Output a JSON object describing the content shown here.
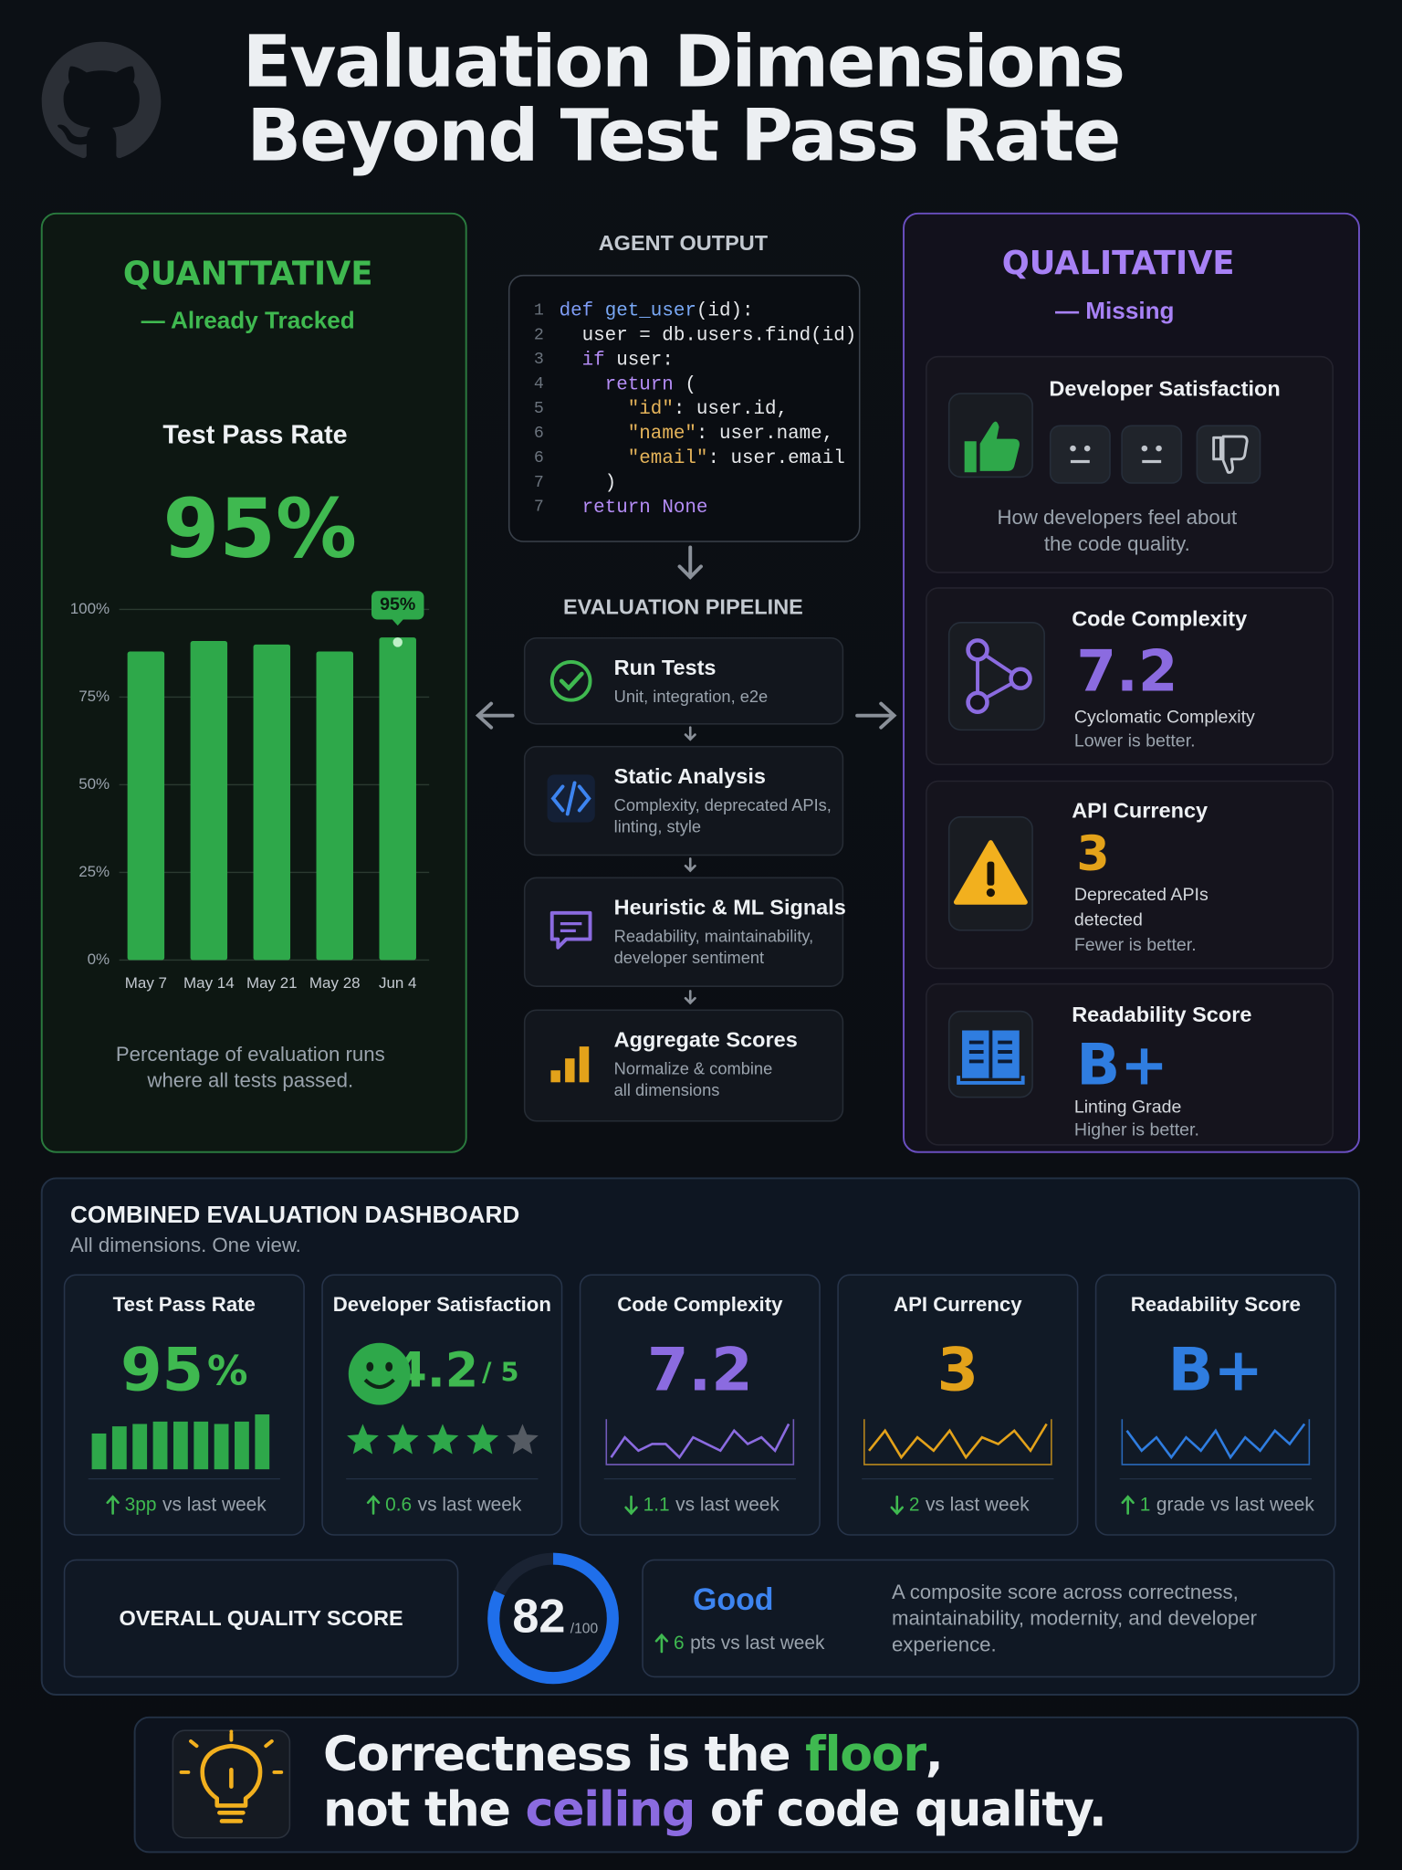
{
  "title": [
    "Evaluation Dimensions",
    "Beyond Test Pass Rate"
  ],
  "quantitative": {
    "heading": "QUANTTATIVE",
    "subheading": "— Already Tracked",
    "metric_label": "Test Pass Rate",
    "metric_value": "95%",
    "caption": [
      "Percentage of evaluation runs",
      "where all tests passed."
    ]
  },
  "chart_data": {
    "type": "bar",
    "categories": [
      "May 7",
      "May 14",
      "May 21",
      "May 28",
      "Jun 4"
    ],
    "values": [
      88,
      91,
      90,
      88,
      92
    ],
    "color": "#2ea84a",
    "ylim": [
      0,
      100
    ],
    "yticks": [
      {
        "value": 0,
        "label": "0%"
      },
      {
        "value": 25,
        "label": "25%"
      },
      {
        "value": 50,
        "label": "50%"
      },
      {
        "value": 75,
        "label": "75%"
      },
      {
        "value": 100,
        "label": "100%"
      }
    ],
    "grid": true,
    "annotation": "95%"
  },
  "agent_output": {
    "label": "AGENT OUTPUT",
    "code": [
      {
        "n": "1",
        "text": "def get_user(id):"
      },
      {
        "n": "2",
        "text": "  user = db.users.find(id)"
      },
      {
        "n": "3",
        "text": "  if user:"
      },
      {
        "n": "4",
        "text": "    return ("
      },
      {
        "n": "5",
        "text": "      \"id\": user.id,"
      },
      {
        "n": "6",
        "text": "      \"name\": user.name,"
      },
      {
        "n": "6",
        "text": "      \"email\": user.email"
      },
      {
        "n": "7",
        "text": "    )"
      },
      {
        "n": "7",
        "text": "  return None"
      }
    ]
  },
  "pipeline": {
    "label": "EVALUATION PIPELINE",
    "steps": [
      {
        "title": "Run Tests",
        "desc": [
          "Unit, integration, e2e"
        ]
      },
      {
        "title": "Static Analysis",
        "desc": [
          "Complexity, deprecated APIs,",
          "linting, style"
        ]
      },
      {
        "title": "Heuristic & ML Signals",
        "desc": [
          "Readability, maintainability,",
          "developer sentiment"
        ]
      },
      {
        "title": "Aggregate Scores",
        "desc": [
          "Normalize & combine",
          "all dimensions"
        ]
      }
    ]
  },
  "qualitative": {
    "heading": "QUALITATIVE",
    "subheading": "— Missing",
    "cards": [
      {
        "title": "Developer Satisfaction",
        "desc": [
          "How developers feel about",
          "the code quality."
        ]
      },
      {
        "title": "Code Complexity",
        "value": "7.2",
        "color": "#8b6be0",
        "desc": [
          "Cyclomatic Complexity",
          "Lower is better."
        ]
      },
      {
        "title": "API Currency",
        "value": "3",
        "color": "#e3a21a",
        "desc": [
          "Deprecated APIs",
          "detected",
          "Fewer is better."
        ]
      },
      {
        "title": "Readability Score",
        "value": "B+",
        "color": "#2f7de0",
        "desc": [
          "Linting Grade",
          "Higher is better."
        ]
      }
    ]
  },
  "dashboard": {
    "title": "COMBINED EVALUATION DASHBOARD",
    "subtitle": "All dimensions. One view.",
    "tiles": [
      {
        "title": "Test Pass Rate",
        "value": "95",
        "unit": "%",
        "color": "#3fb950",
        "bars": [
          30,
          36,
          38,
          40,
          40,
          40,
          38,
          40,
          46
        ],
        "trend": "up",
        "change_value": "3pp",
        "change_text": "vs last week"
      },
      {
        "title": "Developer Satisfaction",
        "value": "4.2",
        "unit": "/ 5",
        "color": "#3fb950",
        "stars": {
          "filled": 4,
          "total": 5
        },
        "trend": "up",
        "change_value": "0.6",
        "change_text": "vs last week"
      },
      {
        "title": "Code Complexity",
        "value": "7.2",
        "color": "#8b6be0",
        "sparkline": [
          3,
          6,
          4,
          5,
          5,
          3,
          6,
          5,
          4,
          7,
          5,
          6,
          4,
          8
        ],
        "trend": "down",
        "change_value": "1.1",
        "change_text": "vs last week"
      },
      {
        "title": "API Currency",
        "value": "3",
        "color": "#e3a21a",
        "sparkline": [
          4,
          7,
          3,
          6,
          4,
          7,
          3,
          6,
          5,
          7,
          4,
          8
        ],
        "trend": "down",
        "change_value": "2",
        "change_text": "vs last week"
      },
      {
        "title": "Readability Score",
        "value": "B+",
        "color": "#2f7de0",
        "sparkline": [
          6,
          3,
          5,
          2,
          5,
          3,
          6,
          2,
          5,
          3,
          6,
          4,
          7
        ],
        "trend": "up",
        "change_value": "1",
        "change_text": "grade vs last week"
      }
    ]
  },
  "overall": {
    "label": "OVERALL QUALITY SCORE",
    "score": 82,
    "max": {
      "value": 100,
      "label": "/100"
    },
    "rating": "Good",
    "trend": "up",
    "change_value": "6",
    "change_text": "pts vs last week",
    "description": [
      "A composite score across correctness,",
      "maintainability, modernity, and developer",
      "experience."
    ]
  },
  "footer": {
    "lines": [
      [
        {
          "text": "Correctness is the "
        },
        {
          "text": "floor",
          "color": "#3fb950"
        },
        {
          "text": ","
        }
      ],
      [
        {
          "text": "not the "
        },
        {
          "text": "ceiling",
          "color": "#8b6be0"
        },
        {
          "text": " of code quality."
        }
      ]
    ]
  }
}
